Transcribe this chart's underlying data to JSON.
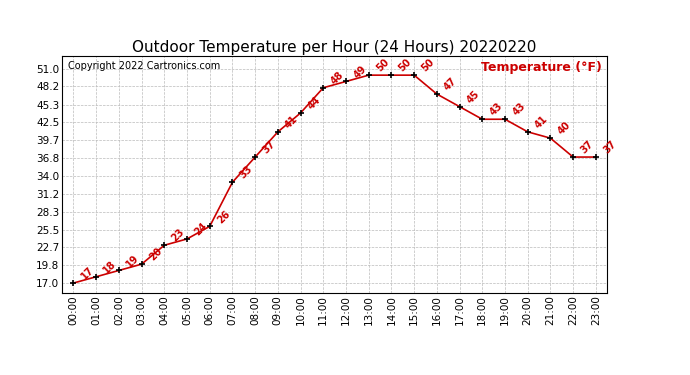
{
  "title": "Outdoor Temperature per Hour (24 Hours) 20220220",
  "copyright_text": "Copyright 2022 Cartronics.com",
  "legend_label": "Temperature (°F)",
  "hours": [
    "00:00",
    "01:00",
    "02:00",
    "03:00",
    "04:00",
    "05:00",
    "06:00",
    "07:00",
    "08:00",
    "09:00",
    "10:00",
    "11:00",
    "12:00",
    "13:00",
    "14:00",
    "15:00",
    "16:00",
    "17:00",
    "18:00",
    "19:00",
    "20:00",
    "21:00",
    "22:00",
    "23:00"
  ],
  "temps": [
    17,
    18,
    19,
    20,
    23,
    24,
    26,
    33,
    37,
    41,
    44,
    48,
    49,
    50,
    50,
    50,
    47,
    45,
    43,
    43,
    41,
    40,
    37,
    37
  ],
  "line_color": "#cc0000",
  "marker_color": "#000000",
  "background_color": "#ffffff",
  "grid_color": "#bbbbbb",
  "title_fontsize": 11,
  "tick_fontsize": 7.5,
  "annot_fontsize": 7,
  "copyright_fontsize": 7,
  "legend_fontsize": 9,
  "yticks": [
    17.0,
    19.8,
    22.7,
    25.5,
    28.3,
    31.2,
    34.0,
    36.8,
    39.7,
    42.5,
    45.3,
    48.2,
    51.0
  ],
  "ymin": 15.5,
  "ymax": 53.0
}
